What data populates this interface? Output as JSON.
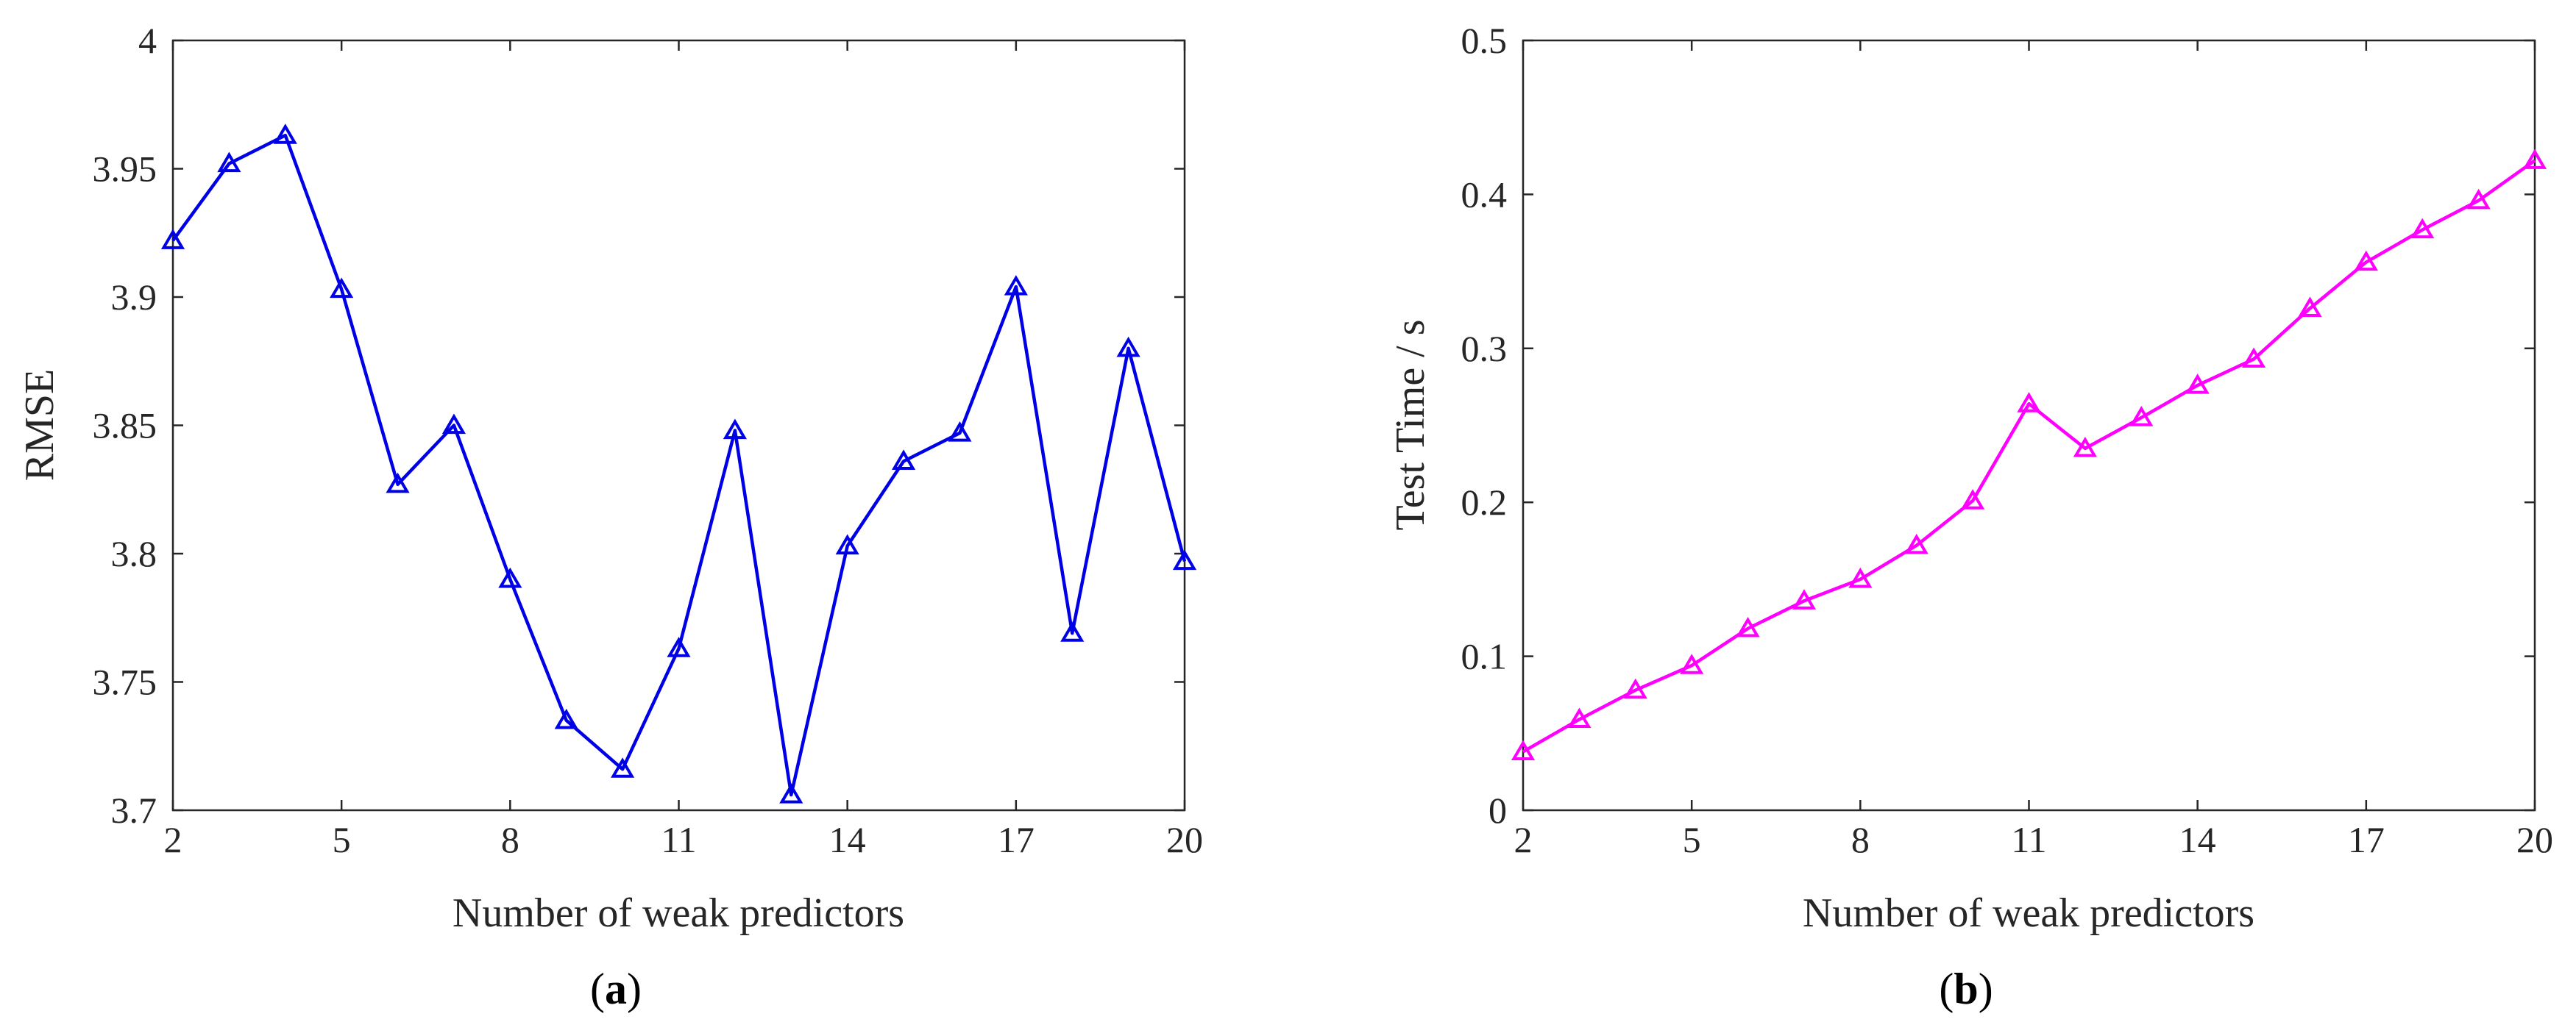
{
  "chart_data": [
    {
      "type": "line",
      "panel_label": "(a)",
      "xlabel": "Number of weak predictors",
      "ylabel": "RMSE",
      "xlim": [
        2,
        20
      ],
      "ylim": [
        3.7,
        4.0
      ],
      "xticks": [
        "2",
        "5",
        "8",
        "11",
        "14",
        "17",
        "20"
      ],
      "yticks": [
        "3.7",
        "3.75",
        "3.8",
        "3.85",
        "3.9",
        "3.95",
        "4"
      ],
      "grid": false,
      "marker": "triangle",
      "series": [
        {
          "color": "#0000e6",
          "x": [
            2,
            3,
            4,
            5,
            6,
            7,
            8,
            9,
            10,
            11,
            12,
            13,
            14,
            15,
            16,
            17,
            18,
            19,
            20
          ],
          "y": [
            3.922,
            3.952,
            3.963,
            3.903,
            3.827,
            3.85,
            3.79,
            3.735,
            3.716,
            3.763,
            3.848,
            3.706,
            3.803,
            3.836,
            3.847,
            3.904,
            3.769,
            3.88,
            3.797
          ]
        }
      ]
    },
    {
      "type": "line",
      "panel_label": "(b)",
      "xlabel": "Number of weak predictors",
      "ylabel": "Test Time / s",
      "xlim": [
        2,
        20
      ],
      "ylim": [
        0,
        0.5
      ],
      "xticks": [
        "2",
        "5",
        "8",
        "11",
        "14",
        "17",
        "20"
      ],
      "yticks": [
        "0",
        "0.1",
        "0.2",
        "0.3",
        "0.4",
        "0.5"
      ],
      "grid": false,
      "marker": "triangle",
      "series": [
        {
          "color": "#ff00ff",
          "x": [
            2,
            3,
            4,
            5,
            6,
            7,
            8,
            9,
            10,
            11,
            12,
            13,
            14,
            15,
            16,
            17,
            18,
            19,
            20
          ],
          "y": [
            0.038,
            0.059,
            0.078,
            0.094,
            0.118,
            0.136,
            0.15,
            0.172,
            0.201,
            0.264,
            0.235,
            0.255,
            0.276,
            0.293,
            0.326,
            0.356,
            0.377,
            0.396,
            0.422
          ]
        }
      ]
    }
  ]
}
